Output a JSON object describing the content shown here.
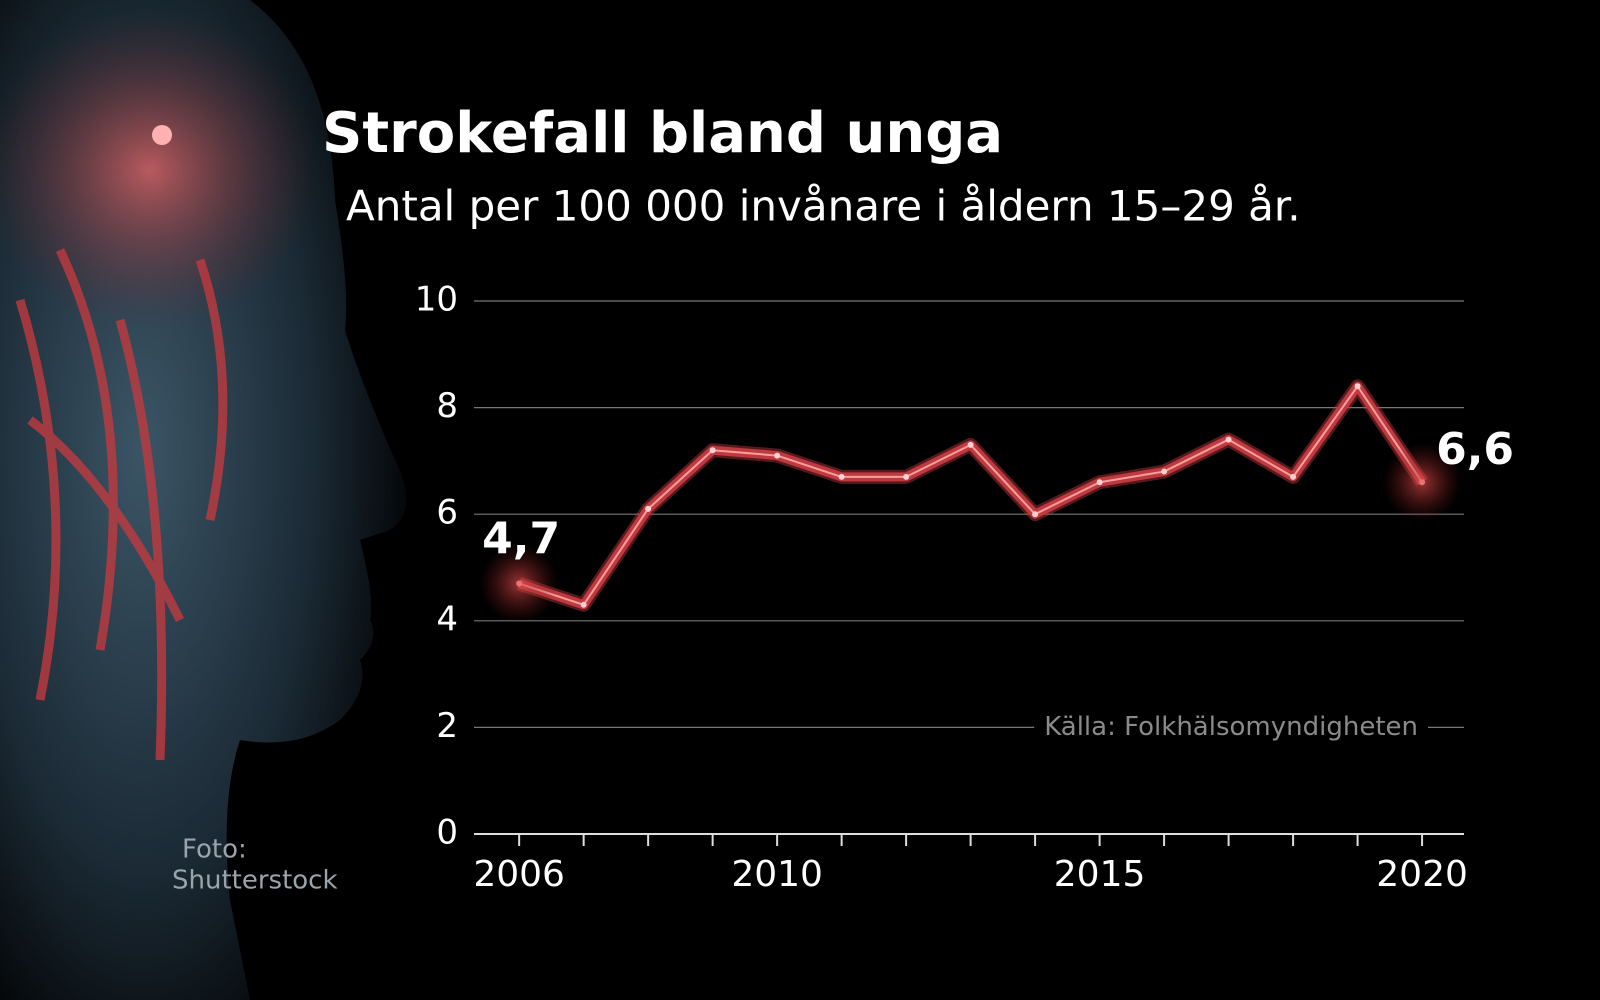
{
  "chart_data": {
    "type": "line",
    "title": "Strokefall bland unga",
    "subtitle": "Antal per 100 000 invånare i åldern 15–29 år.",
    "source": "Källa: Folkhälsomyndigheten",
    "credit": [
      "Foto:",
      "Shutterstock"
    ],
    "x": [
      2006,
      2007,
      2008,
      2009,
      2010,
      2011,
      2012,
      2013,
      2014,
      2015,
      2016,
      2017,
      2018,
      2019,
      2020
    ],
    "series": [
      {
        "color": "#c0393f",
        "values": [
          4.7,
          4.3,
          6.1,
          7.2,
          7.1,
          6.7,
          6.7,
          7.3,
          6.0,
          6.6,
          6.8,
          7.4,
          6.7,
          8.4,
          6.6
        ],
        "value_labels": [
          "4,7",
          null,
          null,
          null,
          null,
          null,
          null,
          null,
          null,
          null,
          null,
          null,
          null,
          null,
          "6,6"
        ]
      }
    ],
    "xlim": [
      2005.3,
      2020.65
    ],
    "xticks": [
      2006,
      2010,
      2015,
      2020
    ],
    "ylim": [
      0,
      10
    ],
    "yticks": [
      0,
      2,
      4,
      6,
      8,
      10
    ],
    "grid": true
  }
}
